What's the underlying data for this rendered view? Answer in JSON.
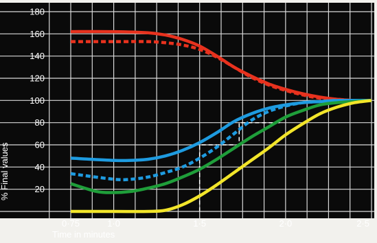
{
  "chart_data": {
    "type": "line",
    "title": "",
    "xlabel": "Time in minutes",
    "ylabel": "% Final values",
    "xlim": [
      0.65,
      2.5
    ],
    "ylim": [
      0,
      180
    ],
    "x_ticks": [
      {
        "value": 0.75,
        "label": "0·75"
      },
      {
        "value": 1.0,
        "label": "1·0"
      },
      {
        "value": 1.5,
        "label": "1·5"
      },
      {
        "value": 2.0,
        "label": "2·0"
      },
      {
        "value": 2.5,
        "label": "2·5"
      }
    ],
    "y_ticks": [
      20,
      40,
      60,
      80,
      100,
      120,
      140,
      160,
      180
    ],
    "grid": true,
    "colors": {
      "background": "#0a0a0a",
      "frame": "#f2f1ed",
      "grid": "#d9d9d9",
      "red": "#e8321e",
      "blue": "#1e9be0",
      "green": "#1f9e3a",
      "yellow": "#f2e52a",
      "marker": "#ffffff"
    },
    "series": [
      {
        "color": "red",
        "style": "solid",
        "x": [
          0.75,
          1.0,
          1.2,
          1.3,
          1.4,
          1.5,
          1.6,
          1.7,
          1.8,
          1.9,
          2.0,
          2.1,
          2.2,
          2.3,
          2.4,
          2.5
        ],
        "y": [
          162,
          162,
          161,
          159,
          155,
          149,
          140,
          130,
          122,
          115,
          110,
          106,
          103,
          101,
          100,
          100
        ]
      },
      {
        "color": "red",
        "style": "dashed",
        "x": [
          0.75,
          1.0,
          1.2,
          1.3,
          1.4,
          1.5,
          1.6,
          1.7,
          1.8,
          1.9,
          2.0,
          2.1,
          2.2,
          2.3,
          2.4,
          2.5
        ],
        "y": [
          153,
          153,
          153,
          152,
          150,
          146,
          139,
          130,
          121,
          114,
          109,
          105,
          102,
          101,
          100,
          100
        ]
      },
      {
        "color": "blue",
        "style": "solid",
        "x": [
          0.75,
          1.0,
          1.1,
          1.2,
          1.3,
          1.4,
          1.5,
          1.6,
          1.7,
          1.8,
          1.9,
          2.0,
          2.1,
          2.2,
          2.3,
          2.5
        ],
        "y": [
          48,
          46,
          46,
          47,
          50,
          55,
          62,
          71,
          81,
          88,
          93,
          96,
          98,
          99,
          100,
          100
        ]
      },
      {
        "color": "blue",
        "style": "dashed",
        "x": [
          0.75,
          1.0,
          1.1,
          1.2,
          1.3,
          1.4,
          1.5,
          1.6,
          1.7,
          1.8,
          1.9,
          2.0,
          2.1,
          2.2,
          2.3,
          2.5
        ],
        "y": [
          34,
          29,
          29,
          31,
          35,
          40,
          48,
          58,
          70,
          82,
          90,
          95,
          98,
          99,
          100,
          100
        ]
      },
      {
        "color": "green",
        "style": "solid",
        "x": [
          0.75,
          0.9,
          1.0,
          1.1,
          1.2,
          1.3,
          1.4,
          1.5,
          1.6,
          1.7,
          1.8,
          1.9,
          2.0,
          2.1,
          2.2,
          2.3,
          2.5
        ],
        "y": [
          25,
          18,
          17,
          18,
          21,
          25,
          31,
          38,
          47,
          57,
          67,
          76,
          85,
          91,
          96,
          98,
          100
        ]
      },
      {
        "color": "yellow",
        "style": "solid",
        "x": [
          0.75,
          1.0,
          1.2,
          1.3,
          1.4,
          1.5,
          1.6,
          1.7,
          1.8,
          1.9,
          2.0,
          2.1,
          2.2,
          2.3,
          2.4,
          2.5
        ],
        "y": [
          0,
          0,
          0,
          1,
          6,
          14,
          24,
          35,
          46,
          57,
          69,
          79,
          88,
          94,
          98,
          100
        ]
      }
    ],
    "reference_markers": [
      {
        "color": "marker",
        "points": [
          [
            1.5,
            0
          ],
          [
            1.5,
            60
          ],
          [
            1.73,
            60
          ],
          [
            1.73,
            80
          ],
          [
            1.98,
            80
          ]
        ]
      }
    ]
  }
}
